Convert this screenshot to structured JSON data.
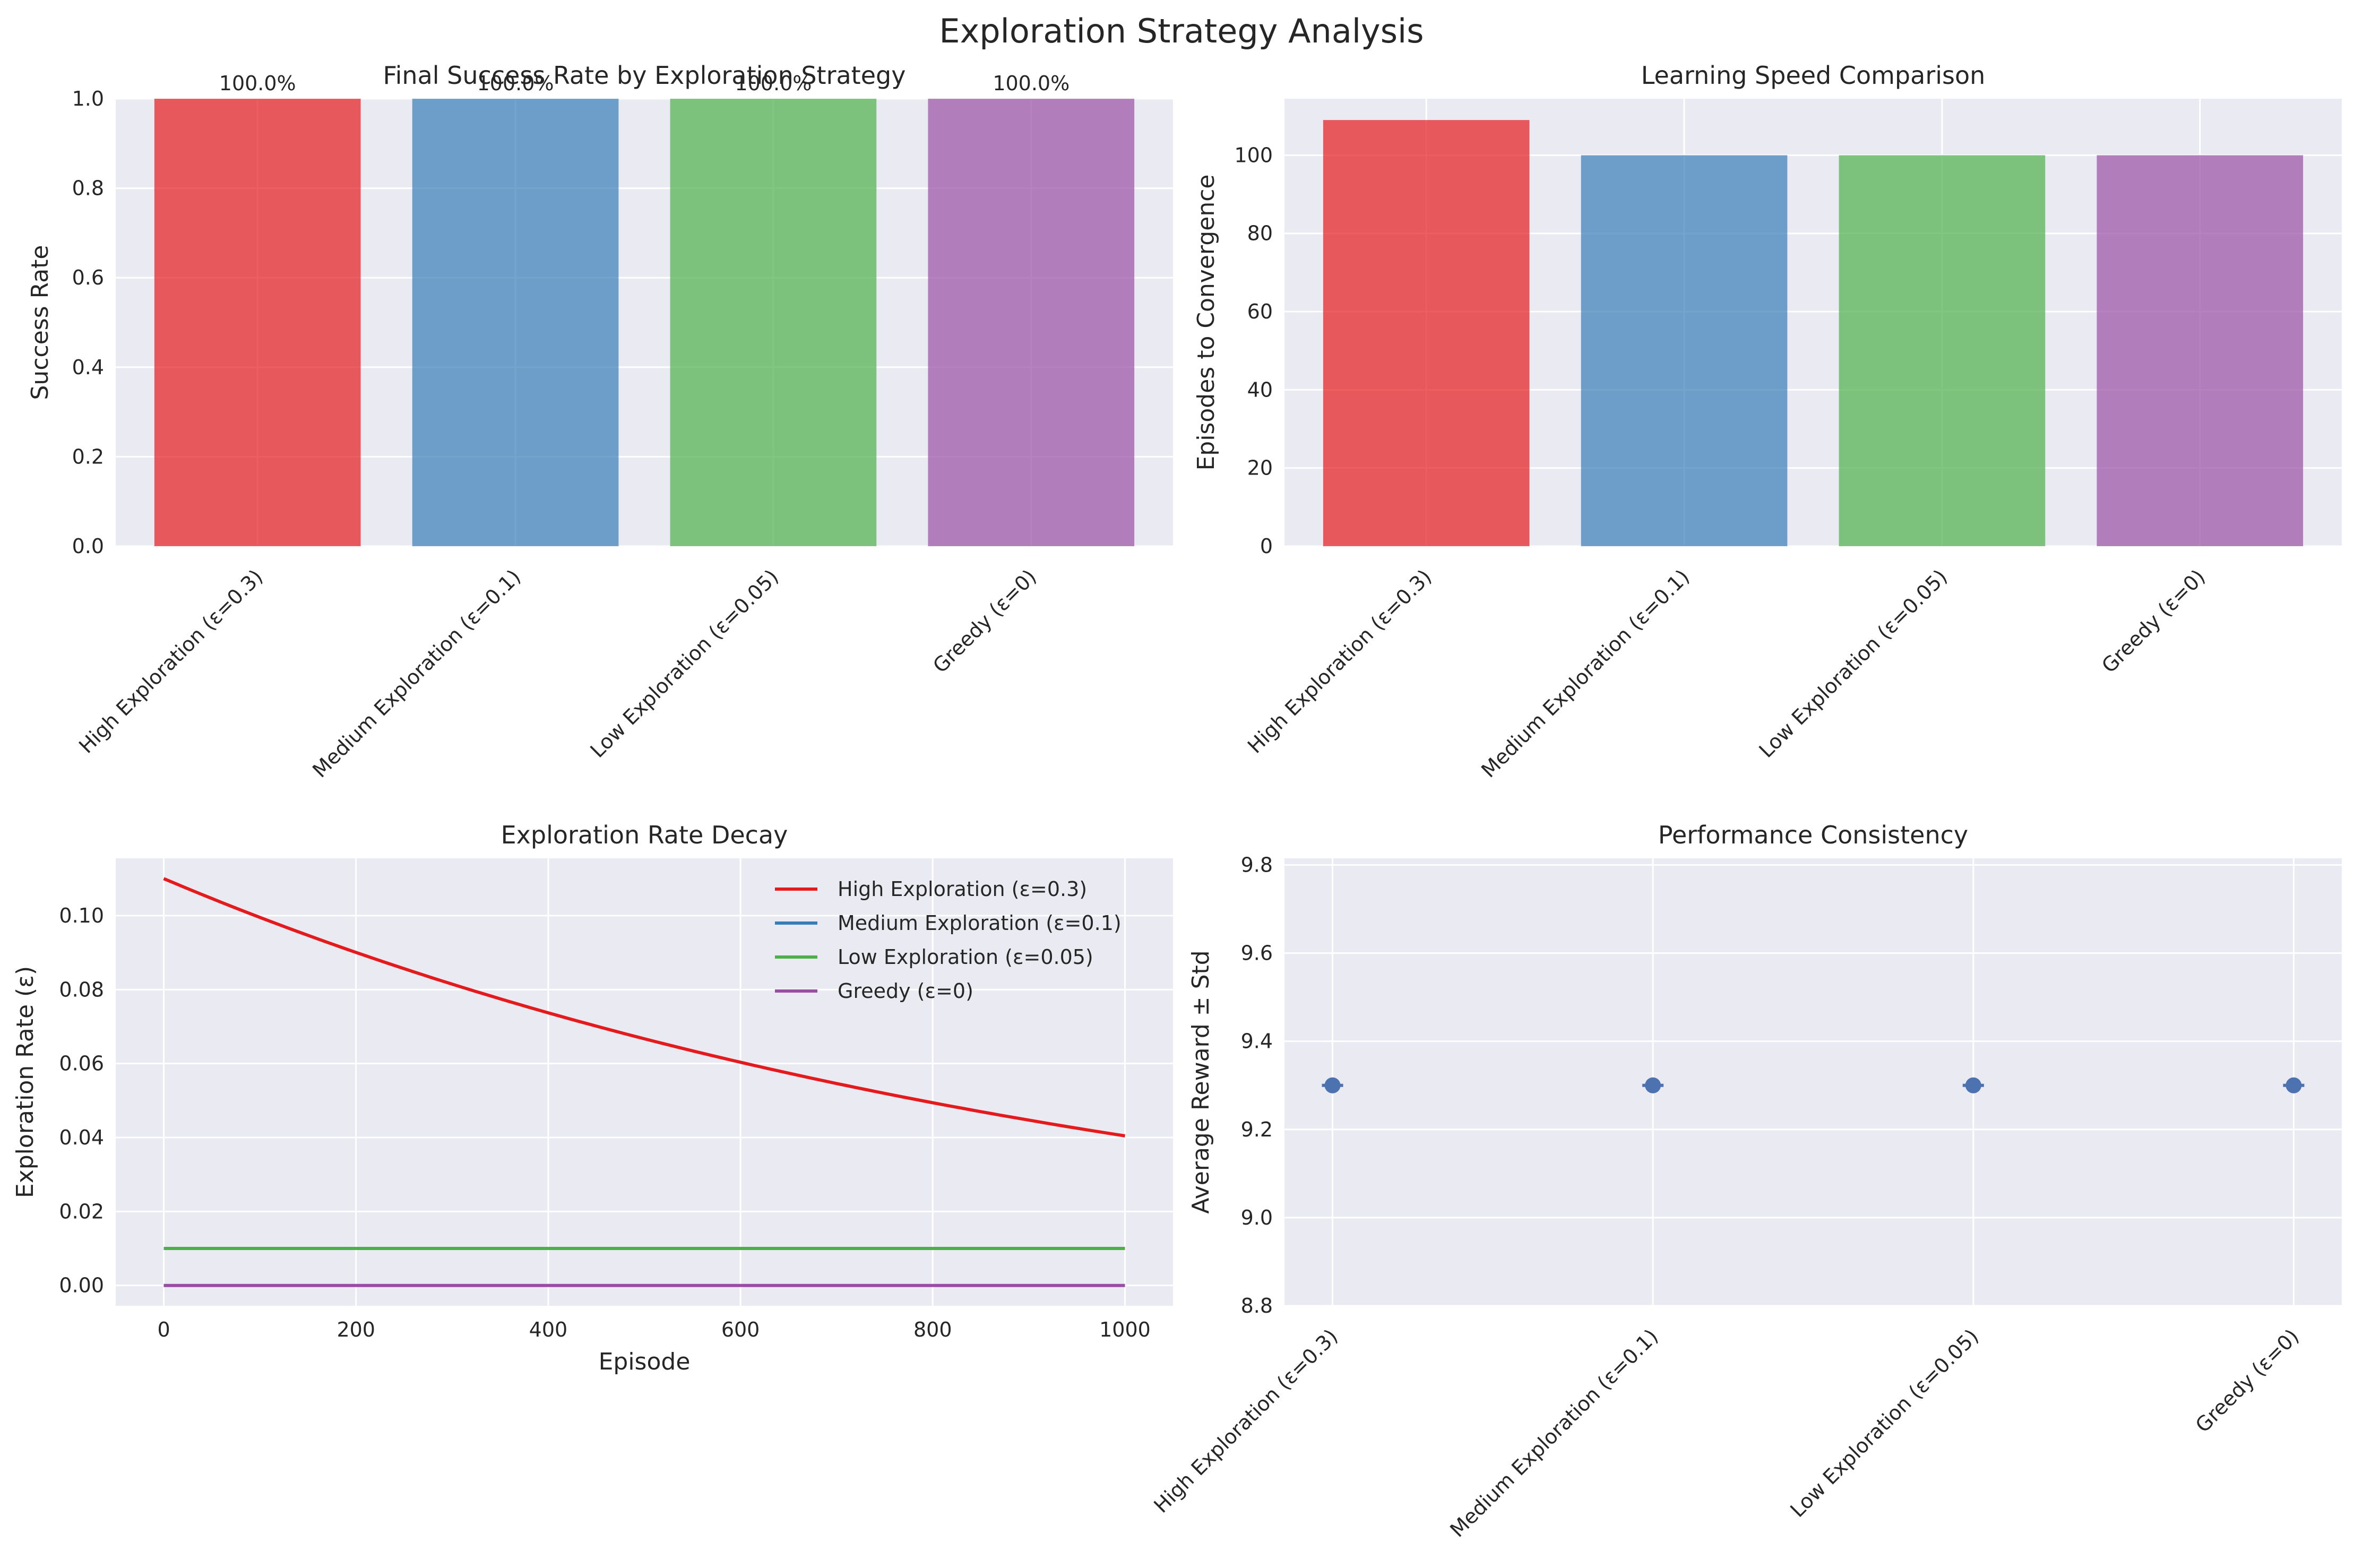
{
  "figure": {
    "title": "Exploration Strategy Analysis"
  },
  "colors": {
    "axes_bg": "#eaeaf2",
    "grid": "#ffffff",
    "red": "#e41a1c",
    "blue": "#377eb8",
    "green": "#4daf4a",
    "purple": "#984ea3",
    "errorbar": "#4c72b0"
  },
  "chart_data": [
    {
      "type": "bar",
      "title": "Final Success Rate by Exploration Strategy",
      "xlabel": "",
      "ylabel": "Success Rate",
      "categories": [
        "High Exploration (ε=0.3)",
        "Medium Exploration (ε=0.1)",
        "Low Exploration (ε=0.05)",
        "Greedy (ε=0)"
      ],
      "values": [
        1.0,
        1.0,
        1.0,
        1.0
      ],
      "data_labels": [
        "100.0%",
        "100.0%",
        "100.0%",
        "100.0%"
      ],
      "ylim": [
        0,
        1.0
      ],
      "yticks": [
        0.0,
        0.2,
        0.4,
        0.6,
        0.8,
        1.0
      ],
      "ytick_labels": [
        "0.0",
        "0.2",
        "0.4",
        "0.6",
        "0.8",
        "1.0"
      ],
      "grid": true
    },
    {
      "type": "bar",
      "title": "Learning Speed Comparison",
      "xlabel": "",
      "ylabel": "Episodes to Convergence",
      "categories": [
        "High Exploration (ε=0.3)",
        "Medium Exploration (ε=0.1)",
        "Low Exploration (ε=0.05)",
        "Greedy (ε=0)"
      ],
      "values": [
        109,
        100,
        100,
        100
      ],
      "ylim": [
        0,
        114.45
      ],
      "yticks": [
        0,
        20,
        40,
        60,
        80,
        100
      ],
      "ytick_labels": [
        "0",
        "20",
        "40",
        "60",
        "80",
        "100"
      ],
      "grid": true
    },
    {
      "type": "line",
      "title": "Exploration Rate Decay",
      "xlabel": "Episode",
      "ylabel": "Exploration Rate (ε)",
      "xlim": [
        -50,
        1050
      ],
      "ylim": [
        -0.0055,
        0.1155
      ],
      "xticks": [
        0,
        200,
        400,
        600,
        800,
        1000
      ],
      "xtick_labels": [
        "0",
        "200",
        "400",
        "600",
        "800",
        "1000"
      ],
      "yticks": [
        0.0,
        0.02,
        0.04,
        0.06,
        0.08,
        0.1
      ],
      "ytick_labels": [
        "0.00",
        "0.02",
        "0.04",
        "0.06",
        "0.08",
        "0.10"
      ],
      "legend": "top-right",
      "grid": true,
      "series": [
        {
          "name": "High Exploration (ε=0.3)",
          "color_key": "red",
          "start": 0.11,
          "decay": 0.999,
          "episodes": [
            0,
            1000
          ]
        },
        {
          "name": "Medium Exploration (ε=0.1)",
          "color_key": "blue",
          "start": 0.01,
          "decay": 1.0,
          "episodes": [
            0,
            1000
          ]
        },
        {
          "name": "Low Exploration (ε=0.05)",
          "color_key": "green",
          "start": 0.01,
          "decay": 1.0,
          "episodes": [
            0,
            1000
          ]
        },
        {
          "name": "Greedy (ε=0)",
          "color_key": "purple",
          "start": 0.0,
          "decay": 1.0,
          "episodes": [
            0,
            1000
          ]
        }
      ]
    },
    {
      "type": "scatter",
      "title": "Performance Consistency",
      "xlabel": "",
      "ylabel": "Average Reward ± Std",
      "categories": [
        "High Exploration (ε=0.3)",
        "Medium Exploration (ε=0.1)",
        "Low Exploration (ε=0.05)",
        "Greedy (ε=0)"
      ],
      "values": [
        9.3,
        9.3,
        9.3,
        9.3
      ],
      "std": [
        0.0,
        0.0,
        0.0,
        0.0
      ],
      "ylim": [
        8.8,
        9.815
      ],
      "yticks": [
        8.8,
        9.0,
        9.2,
        9.4,
        9.6,
        9.8
      ],
      "ytick_labels": [
        "8.8",
        "9.0",
        "9.2",
        "9.4",
        "9.6",
        "9.8"
      ],
      "grid": true
    }
  ]
}
